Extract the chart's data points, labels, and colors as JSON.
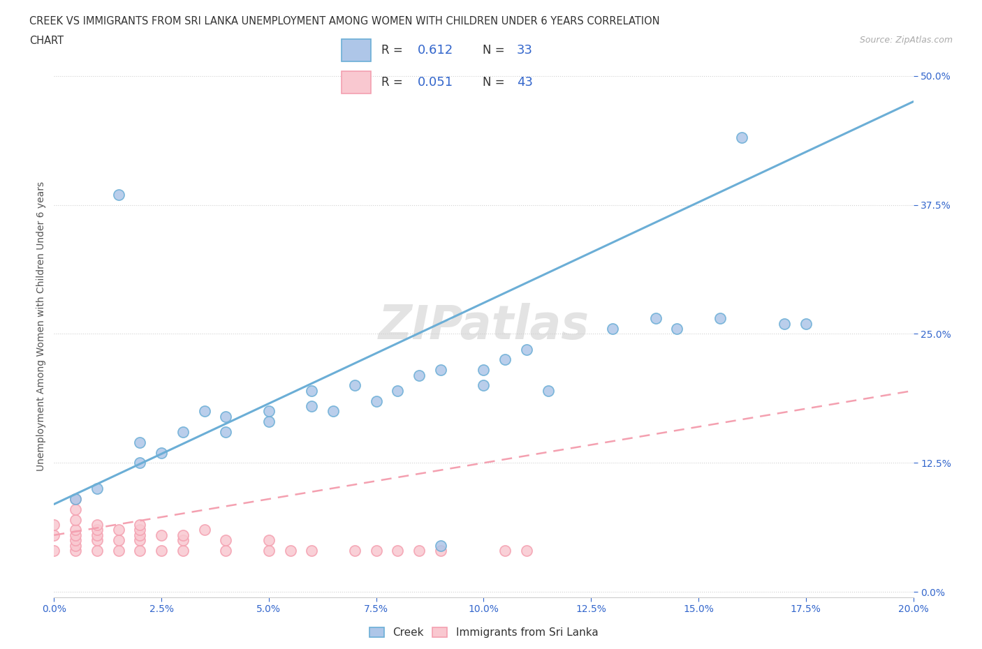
{
  "title_line1": "CREEK VS IMMIGRANTS FROM SRI LANKA UNEMPLOYMENT AMONG WOMEN WITH CHILDREN UNDER 6 YEARS CORRELATION",
  "title_line2": "CHART",
  "source_text": "Source: ZipAtlas.com",
  "xlabel_ticks": [
    "0.0%",
    "2.5%",
    "5.0%",
    "7.5%",
    "10.0%",
    "12.5%",
    "15.0%",
    "17.5%",
    "20.0%"
  ],
  "ylabel_ticks": [
    "0.0%",
    "12.5%",
    "25.0%",
    "37.5%",
    "50.0%"
  ],
  "xlim": [
    0.0,
    0.2
  ],
  "ylim": [
    -0.005,
    0.52
  ],
  "creek_color": "#6baed6",
  "creek_fill": "#aec6e8",
  "sri_lanka_color": "#f4a0b0",
  "sri_lanka_fill": "#f9c8d0",
  "creek_R": 0.612,
  "creek_N": 33,
  "sri_lanka_R": 0.051,
  "sri_lanka_N": 43,
  "watermark": "ZIPatlas",
  "legend_label_1": "Creek",
  "legend_label_2": "Immigrants from Sri Lanka",
  "ylabel": "Unemployment Among Women with Children Under 6 years",
  "creek_x": [
    0.005,
    0.01,
    0.02,
    0.02,
    0.025,
    0.03,
    0.035,
    0.04,
    0.04,
    0.05,
    0.05,
    0.06,
    0.06,
    0.065,
    0.07,
    0.075,
    0.08,
    0.085,
    0.09,
    0.1,
    0.1,
    0.105,
    0.11,
    0.115,
    0.13,
    0.14,
    0.145,
    0.155,
    0.16,
    0.17,
    0.175,
    0.015,
    0.09
  ],
  "creek_y": [
    0.09,
    0.1,
    0.125,
    0.145,
    0.135,
    0.155,
    0.175,
    0.155,
    0.17,
    0.165,
    0.175,
    0.18,
    0.195,
    0.175,
    0.2,
    0.185,
    0.195,
    0.21,
    0.215,
    0.2,
    0.215,
    0.225,
    0.235,
    0.195,
    0.255,
    0.265,
    0.255,
    0.265,
    0.44,
    0.26,
    0.26,
    0.385,
    0.045
  ],
  "sri_lanka_x": [
    0.0,
    0.0,
    0.0,
    0.005,
    0.005,
    0.005,
    0.005,
    0.005,
    0.005,
    0.005,
    0.005,
    0.01,
    0.01,
    0.01,
    0.01,
    0.01,
    0.015,
    0.015,
    0.015,
    0.02,
    0.02,
    0.02,
    0.02,
    0.02,
    0.025,
    0.025,
    0.03,
    0.03,
    0.03,
    0.035,
    0.04,
    0.04,
    0.05,
    0.05,
    0.055,
    0.06,
    0.07,
    0.075,
    0.08,
    0.085,
    0.09,
    0.105,
    0.11
  ],
  "sri_lanka_y": [
    0.04,
    0.055,
    0.065,
    0.04,
    0.045,
    0.05,
    0.055,
    0.06,
    0.07,
    0.08,
    0.09,
    0.04,
    0.05,
    0.055,
    0.06,
    0.065,
    0.04,
    0.05,
    0.06,
    0.04,
    0.05,
    0.055,
    0.06,
    0.065,
    0.04,
    0.055,
    0.04,
    0.05,
    0.055,
    0.06,
    0.04,
    0.05,
    0.04,
    0.05,
    0.04,
    0.04,
    0.04,
    0.04,
    0.04,
    0.04,
    0.04,
    0.04,
    0.04
  ],
  "creek_trend_x": [
    0.0,
    0.2
  ],
  "creek_trend_y": [
    0.085,
    0.475
  ],
  "sri_lanka_trend_x": [
    0.0,
    0.2
  ],
  "sri_lanka_trend_y": [
    0.055,
    0.195
  ]
}
